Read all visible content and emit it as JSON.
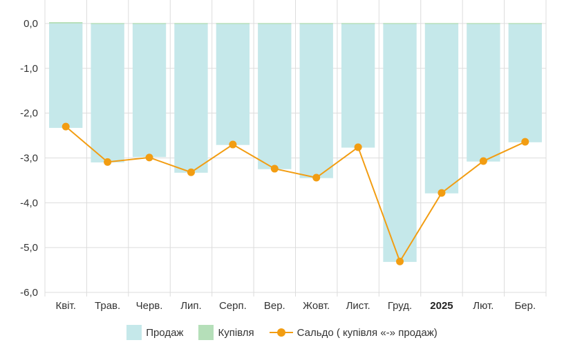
{
  "chart_data": {
    "type": "bar",
    "categories": [
      "Квіт.",
      "Трав.",
      "Черв.",
      "Лип.",
      "Серп.",
      "Вер.",
      "Жовт.",
      "Лист.",
      "Груд.",
      "2025",
      "Лют.",
      "Бер."
    ],
    "bold_categories": [
      "2025"
    ],
    "y_ticks": [
      "0,0",
      "-1,0",
      "-2,0",
      "-3,0",
      "-4,0",
      "-5,0",
      "-6,0"
    ],
    "ylim": [
      -6,
      0
    ],
    "grid": true,
    "legend_position": "bottom",
    "series": [
      {
        "name": "Продаж",
        "type": "bar",
        "color": "#c5e8ea",
        "values": [
          -2.33,
          -3.1,
          -2.98,
          -3.33,
          -2.71,
          -3.25,
          -3.45,
          -2.77,
          -5.32,
          -3.79,
          -3.08,
          -2.65
        ]
      },
      {
        "name": "Купівля",
        "type": "bar",
        "color": "#b5dfb9",
        "values": [
          0.03,
          0.01,
          0.01,
          0.01,
          0.01,
          0.01,
          0.01,
          0.01,
          0.01,
          0.01,
          0.01,
          0.01
        ]
      },
      {
        "name": "Сальдо ( купівля «-» продаж)",
        "type": "line",
        "color": "#f29d12",
        "values": [
          -2.3,
          -3.09,
          -2.99,
          -3.32,
          -2.7,
          -3.24,
          -3.44,
          -2.76,
          -5.31,
          -3.78,
          -3.07,
          -2.64
        ]
      }
    ]
  }
}
